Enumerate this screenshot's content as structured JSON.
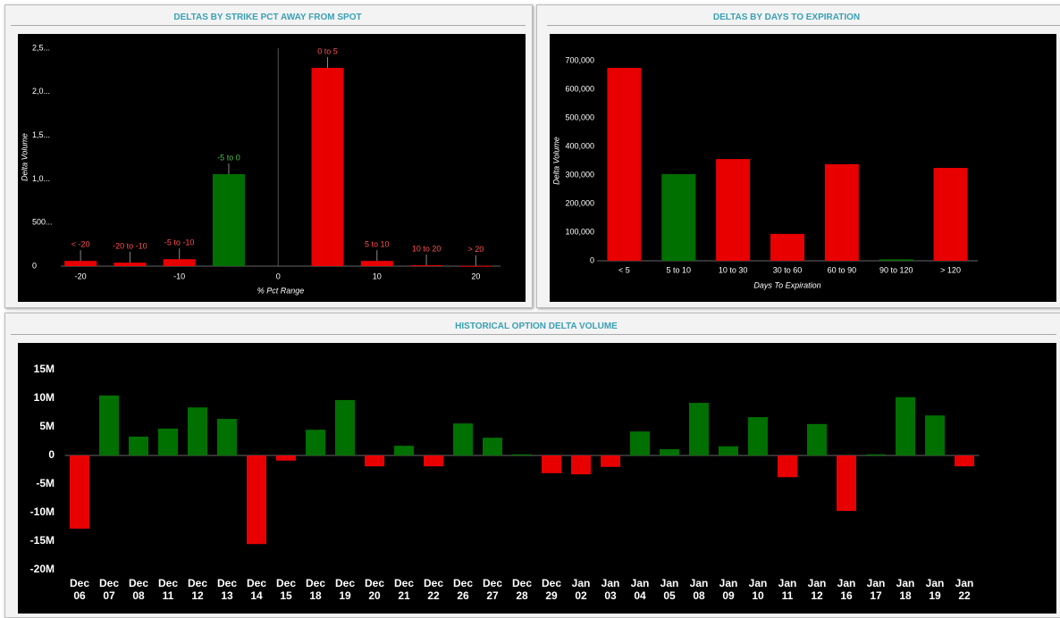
{
  "chart_data": [
    {
      "type": "bar",
      "title": "DELTAS BY STRIKE PCT AWAY FROM SPOT",
      "xlabel": "% Pct Range",
      "ylabel": "Delta Volume",
      "x": [
        -20,
        -15,
        -10,
        -5,
        5,
        10,
        15,
        20
      ],
      "categories": [
        "< -20",
        "-20 to -10",
        "-5 to -10",
        "-5 to 0",
        "0 to 5",
        "5 to 10",
        "10 to 20",
        "> 20"
      ],
      "values": [
        60000,
        40000,
        80000,
        1055000,
        2275000,
        60000,
        10000,
        3000
      ],
      "colors": [
        "#e80000",
        "#e80000",
        "#e80000",
        "#007000",
        "#e80000",
        "#e80000",
        "#e80000",
        "#e80000"
      ],
      "label_colors": [
        "#ff5050",
        "#ff5050",
        "#ff5050",
        "#4cc24c",
        "#ff5050",
        "#ff5050",
        "#ff5050",
        "#ff5050"
      ],
      "xlim": [
        -22,
        22.5
      ],
      "xticks": [
        -20,
        -10,
        0,
        10,
        20
      ],
      "ylim": [
        0,
        2500000
      ],
      "yticks": [
        0,
        {
          "value": 500000,
          "label": "500..."
        },
        {
          "value": 1000000,
          "label": "1,0..."
        },
        {
          "value": 1500000,
          "label": "1,5..."
        },
        {
          "value": 2000000,
          "label": "2,0..."
        },
        {
          "value": 2500000,
          "label": "2,5..."
        }
      ]
    },
    {
      "type": "bar",
      "title": "DELTAS BY DAYS TO EXPIRATION",
      "xlabel": "Days To Expiration",
      "ylabel": "Delta Volume",
      "categories": [
        "< 5",
        "5 to 10",
        "10 to 30",
        "30 to 60",
        "60 to 90",
        "90 to 120",
        "> 120"
      ],
      "values": [
        675000,
        303000,
        356000,
        94000,
        338000,
        5000,
        325000
      ],
      "colors": [
        "#e80000",
        "#007000",
        "#e80000",
        "#e80000",
        "#e80000",
        "#007000",
        "#e80000"
      ],
      "ylim": [
        0,
        700000
      ],
      "yticks": [
        0,
        {
          "value": 100000,
          "label": "100,000"
        },
        {
          "value": 200000,
          "label": "200,000"
        },
        {
          "value": 300000,
          "label": "300,000"
        },
        {
          "value": 400000,
          "label": "400,000"
        },
        {
          "value": 500000,
          "label": "500,000"
        },
        {
          "value": 600000,
          "label": "600,000"
        },
        {
          "value": 700000,
          "label": "700,000"
        }
      ]
    },
    {
      "type": "bar",
      "title": "HISTORICAL OPTION DELTA VOLUME",
      "categories": [
        "Dec 06",
        "Dec 07",
        "Dec 08",
        "Dec 11",
        "Dec 12",
        "Dec 13",
        "Dec 14",
        "Dec 15",
        "Dec 18",
        "Dec 19",
        "Dec 20",
        "Dec 21",
        "Dec 22",
        "Dec 26",
        "Dec 27",
        "Dec 28",
        "Dec 29",
        "Jan 02",
        "Jan 03",
        "Jan 04",
        "Jan 05",
        "Jan 08",
        "Jan 09",
        "Jan 10",
        "Jan 11",
        "Jan 12",
        "Jan 16",
        "Jan 17",
        "Jan 18",
        "Jan 19",
        "Jan 22"
      ],
      "values": [
        -12800000,
        10500000,
        3300000,
        4700000,
        8400000,
        6400000,
        -15500000,
        -900000,
        4500000,
        9700000,
        -1900000,
        1700000,
        -1900000,
        5600000,
        3100000,
        200000,
        -3100000,
        -3300000,
        -2000000,
        4200000,
        1100000,
        9200000,
        1600000,
        6700000,
        -3800000,
        5500000,
        -9700000,
        200000,
        10200000,
        7000000,
        -1900000
      ],
      "positive_color": "#007000",
      "negative_color": "#e80000",
      "ylim": [
        -20000000,
        15000000
      ],
      "yticks": [
        {
          "value": 15000000,
          "label": "15M"
        },
        {
          "value": 10000000,
          "label": "10M"
        },
        {
          "value": 5000000,
          "label": "5M"
        },
        0,
        {
          "value": -5000000,
          "label": "-5M"
        },
        {
          "value": -10000000,
          "label": "-10M"
        },
        {
          "value": -15000000,
          "label": "-15M"
        },
        {
          "value": -20000000,
          "label": "-20M"
        }
      ]
    }
  ]
}
